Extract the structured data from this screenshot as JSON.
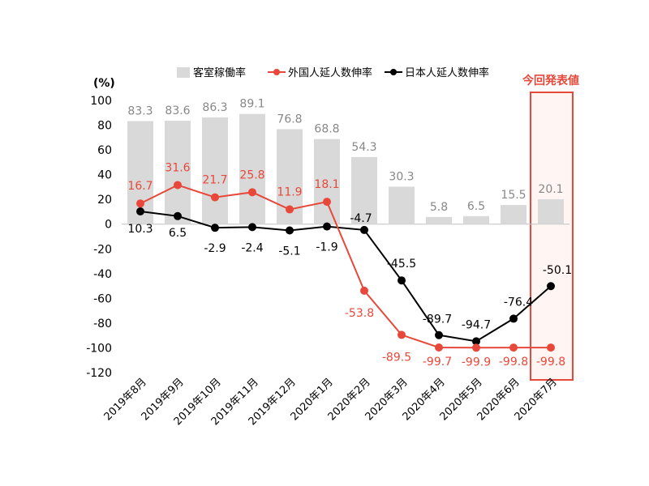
{
  "chart_data": {
    "type": "bar",
    "unit_label": "(%)",
    "categories": [
      "2019年8月",
      "2019年9月",
      "2019年10月",
      "2019年11月",
      "2019年12月",
      "2020年1月",
      "2020年2月",
      "2020年3月",
      "2020年4月",
      "2020年5月",
      "2020年6月",
      "2020年7月"
    ],
    "ylim": [
      -120,
      100
    ],
    "yticks": [
      100,
      80,
      60,
      40,
      20,
      0,
      -20,
      -40,
      -60,
      -80,
      -100,
      -120
    ],
    "legend_position": "top",
    "series": [
      {
        "name": "客室稼働率",
        "type": "bar",
        "color": "#d9d9d9",
        "label_color": "#888888",
        "values": [
          83.3,
          83.6,
          86.3,
          89.1,
          76.8,
          68.8,
          54.3,
          30.3,
          5.8,
          6.5,
          15.5,
          20.1
        ]
      },
      {
        "name": "外国人延人数伸率",
        "type": "line",
        "color": "#e8483a",
        "label_color": "#e8483a",
        "values": [
          16.7,
          31.6,
          21.7,
          25.8,
          11.9,
          18.1,
          -53.8,
          -89.5,
          -99.7,
          -99.9,
          -99.8,
          -99.8
        ]
      },
      {
        "name": "日本人延人数伸率",
        "type": "line",
        "color": "#000000",
        "label_color": "#000000",
        "values": [
          10.3,
          6.5,
          -2.9,
          -2.4,
          -5.1,
          -1.9,
          -4.7,
          -45.5,
          -89.7,
          -94.7,
          -76.4,
          -50.1
        ]
      }
    ],
    "callout": {
      "text": "今回発表値",
      "color": "#e8483a",
      "category_index": 11
    }
  }
}
